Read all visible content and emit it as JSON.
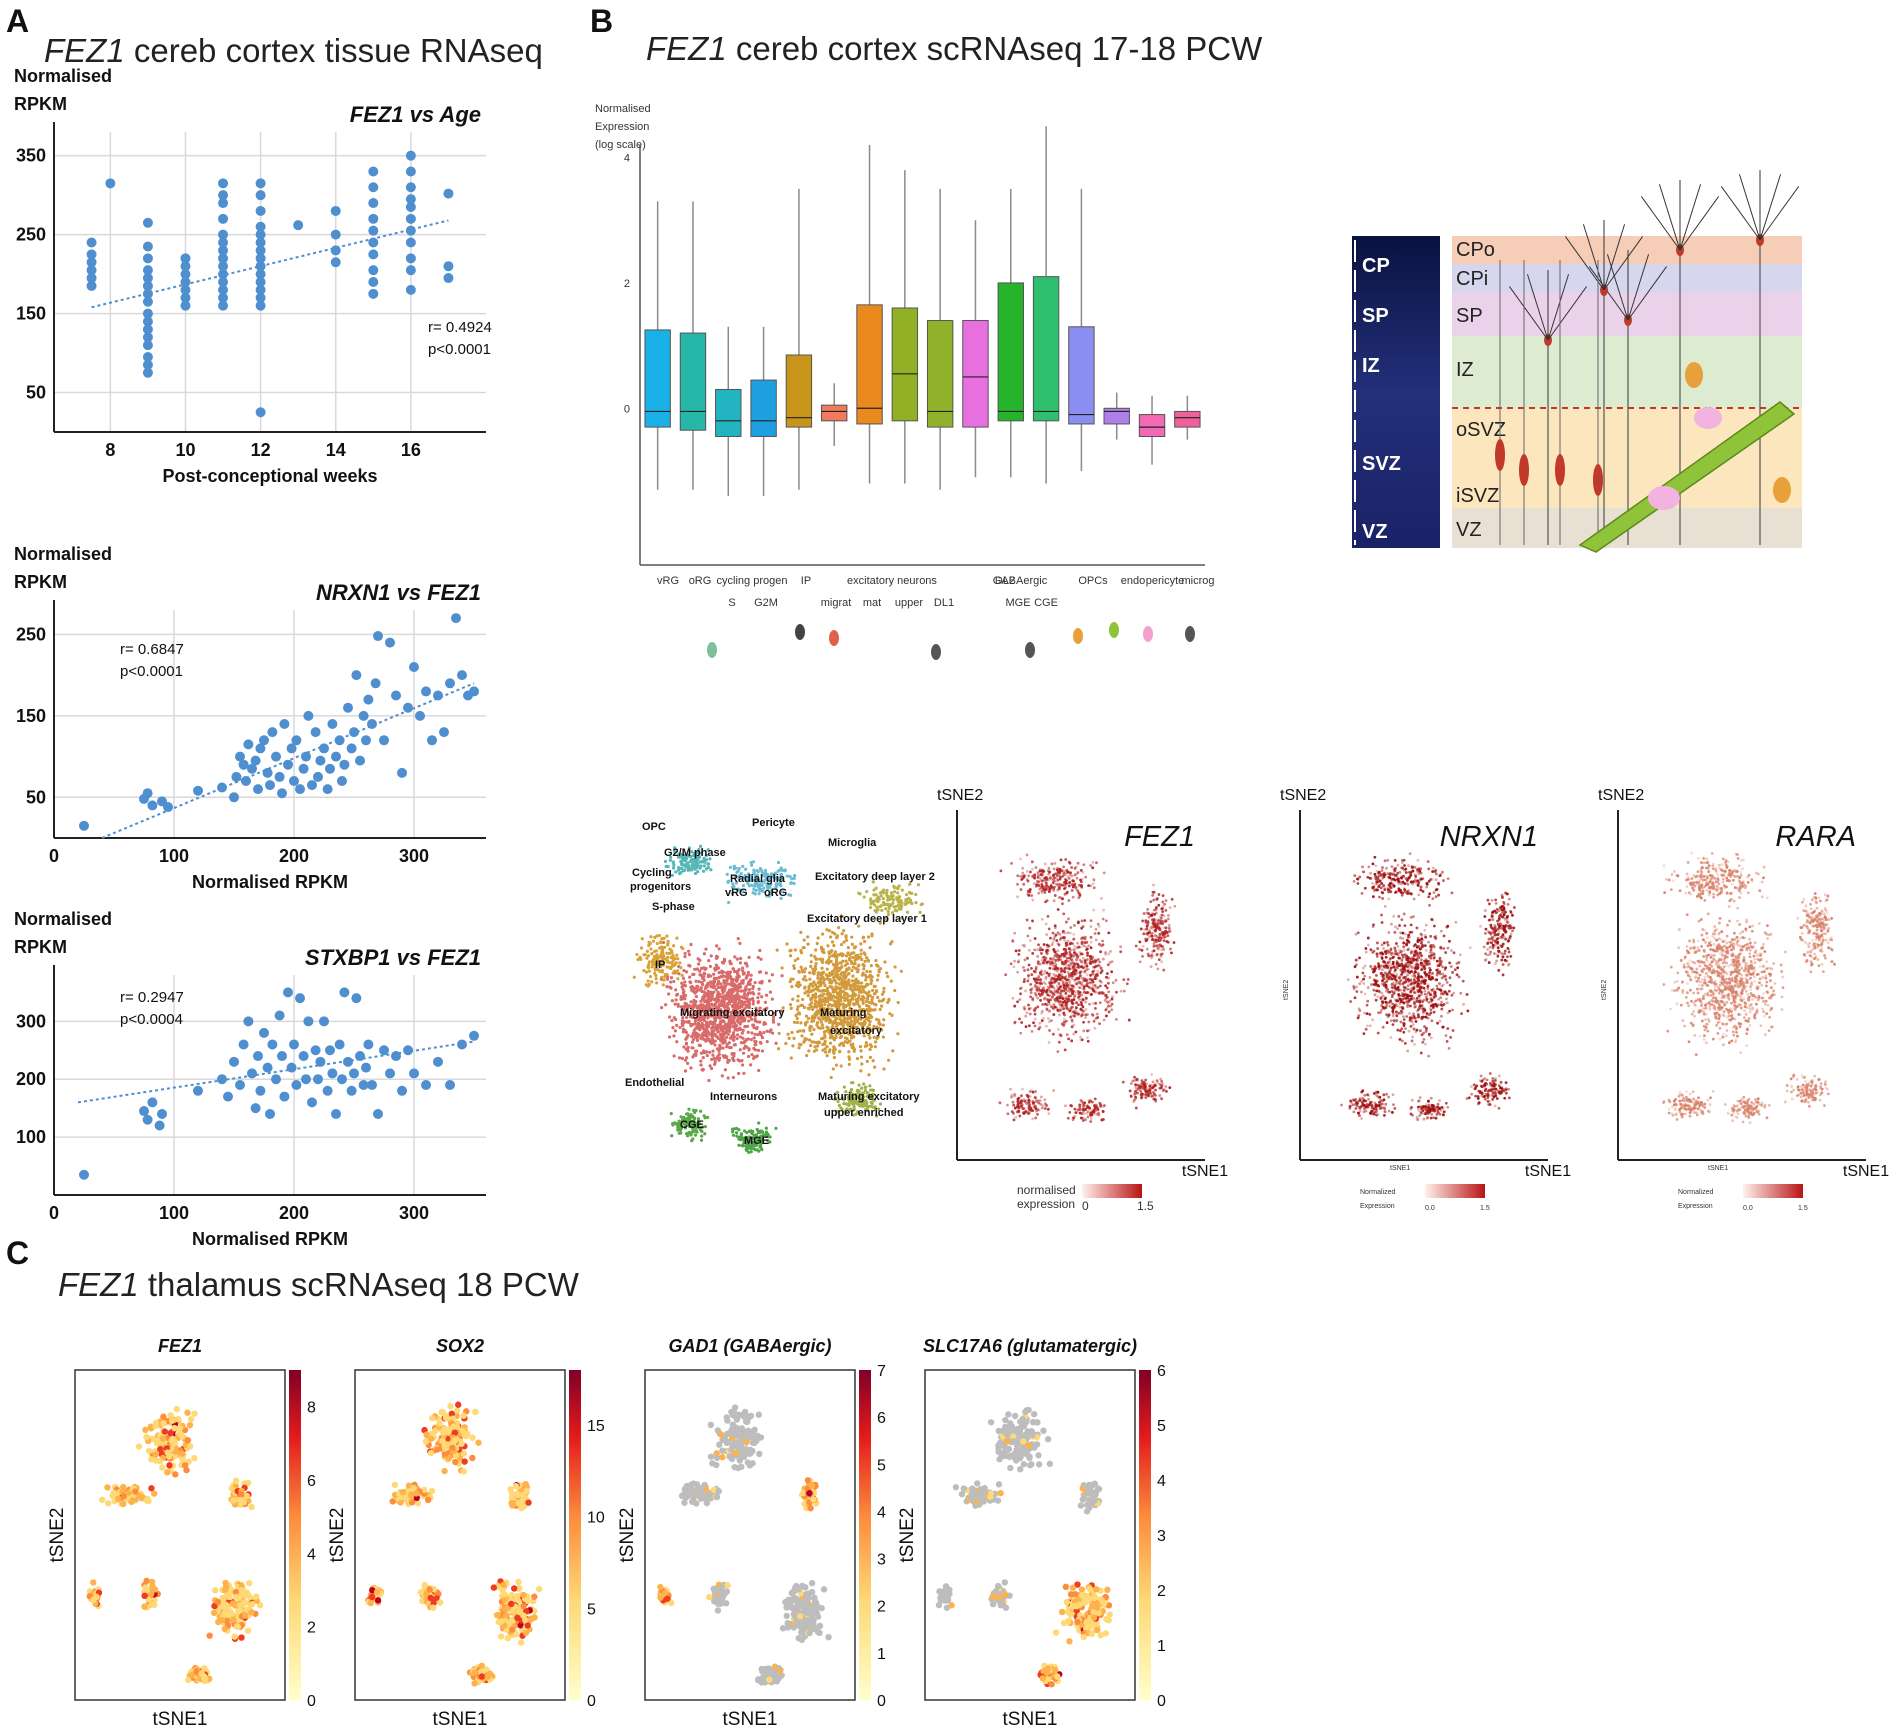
{
  "panels": {
    "a": "A",
    "b": "B",
    "c": "C"
  },
  "section_titles": {
    "a": {
      "gene": "FEZ1",
      "rest": " cereb cortex tissue RNAseq"
    },
    "b": {
      "gene": "FEZ1",
      "rest": " cereb cortex scRNAseq 17-18 PCW"
    },
    "c": {
      "gene": "FEZ1",
      "rest": " thalamus scRNAseq 18 PCW"
    }
  },
  "chart_data": [
    {
      "id": "fez1_vs_age",
      "type": "scatter",
      "title": "FEZ1 vs Age",
      "ylabel_1": "Normalised",
      "ylabel_2": "RPKM",
      "xlabel": "Post-conceptional weeks",
      "xlim": [
        6.5,
        18
      ],
      "ylim": [
        0,
        380
      ],
      "xticks": [
        8,
        10,
        12,
        14,
        16
      ],
      "yticks": [
        50,
        150,
        250,
        350
      ],
      "stats": [
        "r= 0.4924",
        "p<0.0001"
      ],
      "trend": {
        "x": [
          7.5,
          17
        ],
        "y": [
          158,
          268
        ]
      },
      "points": [
        [
          7.5,
          240
        ],
        [
          7.5,
          225
        ],
        [
          7.5,
          215
        ],
        [
          7.5,
          205
        ],
        [
          7.5,
          195
        ],
        [
          7.5,
          185
        ],
        [
          8,
          315
        ],
        [
          9,
          265
        ],
        [
          9,
          235
        ],
        [
          9,
          220
        ],
        [
          9,
          205
        ],
        [
          9,
          195
        ],
        [
          9,
          185
        ],
        [
          9,
          175
        ],
        [
          9,
          165
        ],
        [
          9,
          150
        ],
        [
          9,
          140
        ],
        [
          9,
          130
        ],
        [
          9,
          120
        ],
        [
          9,
          110
        ],
        [
          9,
          95
        ],
        [
          9,
          85
        ],
        [
          9,
          75
        ],
        [
          10,
          220
        ],
        [
          10,
          210
        ],
        [
          10,
          200
        ],
        [
          10,
          190
        ],
        [
          10,
          180
        ],
        [
          10,
          170
        ],
        [
          10,
          160
        ],
        [
          11,
          315
        ],
        [
          11,
          300
        ],
        [
          11,
          290
        ],
        [
          11,
          270
        ],
        [
          11,
          250
        ],
        [
          11,
          240
        ],
        [
          11,
          230
        ],
        [
          11,
          220
        ],
        [
          11,
          210
        ],
        [
          11,
          200
        ],
        [
          11,
          190
        ],
        [
          11,
          180
        ],
        [
          11,
          170
        ],
        [
          11,
          160
        ],
        [
          12,
          315
        ],
        [
          12,
          300
        ],
        [
          12,
          280
        ],
        [
          12,
          260
        ],
        [
          12,
          250
        ],
        [
          12,
          240
        ],
        [
          12,
          230
        ],
        [
          12,
          220
        ],
        [
          12,
          210
        ],
        [
          12,
          200
        ],
        [
          12,
          190
        ],
        [
          12,
          180
        ],
        [
          12,
          170
        ],
        [
          12,
          160
        ],
        [
          12,
          25
        ],
        [
          13,
          262
        ],
        [
          14,
          280
        ],
        [
          14,
          250
        ],
        [
          14,
          230
        ],
        [
          14,
          215
        ],
        [
          15,
          330
        ],
        [
          15,
          310
        ],
        [
          15,
          290
        ],
        [
          15,
          270
        ],
        [
          15,
          255
        ],
        [
          15,
          240
        ],
        [
          15,
          225
        ],
        [
          15,
          205
        ],
        [
          15,
          190
        ],
        [
          15,
          175
        ],
        [
          16,
          350
        ],
        [
          16,
          330
        ],
        [
          16,
          310
        ],
        [
          16,
          295
        ],
        [
          16,
          285
        ],
        [
          16,
          270
        ],
        [
          16,
          255
        ],
        [
          16,
          240
        ],
        [
          16,
          220
        ],
        [
          16,
          205
        ],
        [
          16,
          180
        ],
        [
          17,
          302
        ],
        [
          17,
          210
        ],
        [
          17,
          195
        ]
      ]
    },
    {
      "id": "nrxn1_vs_fez1",
      "type": "scatter",
      "title": "NRXN1 vs FEZ1",
      "ylabel_1": "Normalised",
      "ylabel_2": "RPKM",
      "xlabel": "Normalised  RPKM",
      "xlim": [
        0,
        360
      ],
      "ylim": [
        0,
        280
      ],
      "xticks": [
        0,
        100,
        200,
        300
      ],
      "yticks": [
        50,
        150,
        250
      ],
      "stats": [
        "r= 0.6847",
        "p<0.0001"
      ],
      "trend": {
        "x": [
          40,
          350
        ],
        "y": [
          0,
          190
        ]
      },
      "points": [
        [
          25,
          15
        ],
        [
          75,
          48
        ],
        [
          78,
          55
        ],
        [
          82,
          40
        ],
        [
          90,
          45
        ],
        [
          95,
          38
        ],
        [
          120,
          58
        ],
        [
          140,
          62
        ],
        [
          150,
          50
        ],
        [
          152,
          75
        ],
        [
          155,
          100
        ],
        [
          158,
          90
        ],
        [
          160,
          70
        ],
        [
          162,
          115
        ],
        [
          165,
          85
        ],
        [
          168,
          95
        ],
        [
          170,
          60
        ],
        [
          172,
          110
        ],
        [
          175,
          120
        ],
        [
          178,
          80
        ],
        [
          180,
          65
        ],
        [
          182,
          130
        ],
        [
          185,
          100
        ],
        [
          188,
          75
        ],
        [
          190,
          55
        ],
        [
          192,
          140
        ],
        [
          195,
          90
        ],
        [
          198,
          110
        ],
        [
          200,
          70
        ],
        [
          202,
          120
        ],
        [
          205,
          60
        ],
        [
          208,
          85
        ],
        [
          210,
          100
        ],
        [
          212,
          150
        ],
        [
          215,
          65
        ],
        [
          218,
          130
        ],
        [
          220,
          75
        ],
        [
          222,
          95
        ],
        [
          225,
          110
        ],
        [
          228,
          60
        ],
        [
          230,
          85
        ],
        [
          232,
          140
        ],
        [
          235,
          100
        ],
        [
          238,
          120
        ],
        [
          240,
          70
        ],
        [
          242,
          90
        ],
        [
          245,
          160
        ],
        [
          248,
          110
        ],
        [
          250,
          130
        ],
        [
          252,
          200
        ],
        [
          255,
          95
        ],
        [
          258,
          150
        ],
        [
          260,
          120
        ],
        [
          262,
          170
        ],
        [
          265,
          140
        ],
        [
          268,
          190
        ],
        [
          270,
          248
        ],
        [
          275,
          120
        ],
        [
          280,
          240
        ],
        [
          285,
          175
        ],
        [
          290,
          80
        ],
        [
          295,
          160
        ],
        [
          300,
          210
        ],
        [
          305,
          150
        ],
        [
          310,
          180
        ],
        [
          315,
          120
        ],
        [
          320,
          175
        ],
        [
          325,
          130
        ],
        [
          330,
          190
        ],
        [
          335,
          270
        ],
        [
          340,
          200
        ],
        [
          345,
          175
        ],
        [
          350,
          180
        ]
      ]
    },
    {
      "id": "stxbp1_vs_fez1",
      "type": "scatter",
      "title": "STXBP1 vs FEZ1",
      "ylabel_1": "Normalised",
      "ylabel_2": "RPKM",
      "xlabel": "Normalised  RPKM",
      "xlim": [
        0,
        360
      ],
      "ylim": [
        0,
        380
      ],
      "xticks": [
        0,
        100,
        200,
        300
      ],
      "yticks": [
        100,
        200,
        300
      ],
      "stats": [
        "r= 0.2947",
        "p<0.0004"
      ],
      "trend": {
        "x": [
          20,
          350
        ],
        "y": [
          160,
          265
        ]
      },
      "points": [
        [
          25,
          35
        ],
        [
          75,
          145
        ],
        [
          78,
          130
        ],
        [
          82,
          160
        ],
        [
          88,
          120
        ],
        [
          90,
          140
        ],
        [
          120,
          180
        ],
        [
          140,
          200
        ],
        [
          145,
          170
        ],
        [
          150,
          230
        ],
        [
          155,
          190
        ],
        [
          158,
          260
        ],
        [
          162,
          300
        ],
        [
          165,
          210
        ],
        [
          168,
          150
        ],
        [
          170,
          240
        ],
        [
          172,
          180
        ],
        [
          175,
          280
        ],
        [
          178,
          220
        ],
        [
          180,
          140
        ],
        [
          182,
          260
        ],
        [
          185,
          200
        ],
        [
          188,
          310
        ],
        [
          190,
          240
        ],
        [
          192,
          170
        ],
        [
          195,
          350
        ],
        [
          198,
          220
        ],
        [
          200,
          260
        ],
        [
          202,
          190
        ],
        [
          205,
          340
        ],
        [
          208,
          240
        ],
        [
          210,
          200
        ],
        [
          212,
          300
        ],
        [
          215,
          160
        ],
        [
          218,
          250
        ],
        [
          220,
          200
        ],
        [
          222,
          230
        ],
        [
          225,
          300
        ],
        [
          228,
          180
        ],
        [
          230,
          250
        ],
        [
          232,
          210
        ],
        [
          235,
          140
        ],
        [
          238,
          260
        ],
        [
          240,
          200
        ],
        [
          242,
          350
        ],
        [
          245,
          230
        ],
        [
          248,
          180
        ],
        [
          250,
          210
        ],
        [
          252,
          340
        ],
        [
          255,
          240
        ],
        [
          258,
          190
        ],
        [
          260,
          220
        ],
        [
          262,
          260
        ],
        [
          265,
          190
        ],
        [
          270,
          140
        ],
        [
          275,
          250
        ],
        [
          280,
          210
        ],
        [
          285,
          240
        ],
        [
          290,
          180
        ],
        [
          295,
          250
        ],
        [
          300,
          210
        ],
        [
          310,
          190
        ],
        [
          320,
          230
        ],
        [
          330,
          190
        ],
        [
          340,
          260
        ],
        [
          350,
          275
        ]
      ]
    },
    {
      "id": "celltype_boxplot",
      "type": "box",
      "ylabel": [
        "Normalised",
        "Expression",
        "(log scale)"
      ],
      "ylim": [
        -2.5,
        4.2
      ],
      "yticks": [
        0,
        2,
        4
      ],
      "categories": [
        "vRG",
        "oRG",
        "cycling progen S",
        "cycling progen G2M",
        "IP",
        "migrat",
        "excitatory neurons mat",
        "excitatory neurons upper",
        "excitatory neurons DL1",
        "DL2",
        "GABAergic MGE",
        "GABAergic CGE",
        "OPCs",
        "endo",
        "pericyte",
        "microg"
      ],
      "axis_labels_row1": [
        "vRG",
        "oRG",
        "cycling progen",
        "IP",
        "excitatory neurons",
        "DL2",
        "GABAergic",
        "OPCs",
        "endo",
        "pericyte",
        "microg"
      ],
      "axis_labels_row2": [
        "S",
        "G2M",
        "migrat",
        "mat",
        "upper",
        "DL1",
        "MGE",
        "CGE"
      ],
      "whisker_low": [
        -1.3,
        -1.3,
        -1.4,
        -1.4,
        -1.3,
        -0.6,
        -1.2,
        -1.2,
        -1.3,
        -1.1,
        -1.1,
        -1.2,
        -1.0,
        -0.5,
        -0.9,
        -0.5
      ],
      "q1": [
        -0.3,
        -0.35,
        -0.45,
        -0.45,
        -0.3,
        -0.2,
        -0.25,
        -0.2,
        -0.3,
        -0.3,
        -0.2,
        -0.2,
        -0.25,
        -0.25,
        -0.45,
        -0.3
      ],
      "median": [
        -0.05,
        -0.05,
        -0.2,
        -0.2,
        -0.15,
        -0.05,
        0.0,
        0.55,
        -0.05,
        0.5,
        -0.05,
        -0.05,
        -0.1,
        -0.05,
        -0.3,
        -0.15
      ],
      "q3": [
        1.25,
        1.2,
        0.3,
        0.45,
        0.85,
        0.05,
        1.65,
        1.6,
        1.4,
        1.4,
        2.0,
        2.1,
        1.3,
        0.0,
        -0.1,
        -0.05
      ],
      "whisker_high": [
        3.3,
        3.3,
        1.3,
        1.3,
        3.5,
        0.4,
        4.2,
        3.8,
        3.5,
        3.0,
        3.5,
        4.5,
        3.5,
        0.25,
        0.2,
        0.2
      ],
      "colors": [
        "#1ab0e8",
        "#27b7a8",
        "#22b4c0",
        "#1e9fe0",
        "#c8951a",
        "#f07a5a",
        "#ea8a1e",
        "#92b025",
        "#8fb22a",
        "#e76fe0",
        "#25b42a",
        "#2ebf6f",
        "#8a8ef0",
        "#b07ee8",
        "#f06ab4",
        "#f0609a"
      ]
    },
    {
      "id": "cortex_layers",
      "type": "table",
      "labels": [
        "CP",
        "SP",
        "IZ",
        "SVZ",
        "VZ"
      ],
      "layers": [
        "CPo",
        "CPi",
        "SP",
        "IZ",
        "oSVZ",
        "iSVZ",
        "VZ"
      ]
    },
    {
      "id": "cluster_tsne",
      "type": "scatter",
      "labels": [
        "OPC",
        "Pericyte",
        "Microglia",
        "G2/M phase",
        "Radial glia",
        "Cycling",
        "progenitors",
        "S-phase",
        "vRG",
        "oRG",
        "Excitatory deep layer 2",
        "Excitatory deep layer 1",
        "IP",
        "Migrating excitatory",
        "Maturing",
        "excitatory",
        "Endothelial",
        "Interneurons",
        "Maturing excitatory",
        "upper enriched",
        "CGE",
        "MGE"
      ]
    },
    {
      "id": "tsne_fez1",
      "type": "scatter",
      "gene": "FEZ1",
      "xlabel": "tSNE1",
      "ylabel": "tSNE2",
      "legend_title_1": "normalised",
      "legend_title_2": "expression",
      "range": [
        "0",
        "1.5"
      ]
    },
    {
      "id": "tsne_nrxn1",
      "type": "scatter",
      "gene": "NRXN1",
      "xlabel": "tSNE1",
      "ylabel": "tSNE2",
      "legend_title_1": "Normalized",
      "legend_title_2": "Expression",
      "range": [
        "0.0",
        "1.5"
      ],
      "small_x": "tSNE1",
      "small_y": "tSNE2"
    },
    {
      "id": "tsne_rara",
      "type": "scatter",
      "gene": "RARA",
      "xlabel": "tSNE1",
      "ylabel": "tSNE2",
      "legend_title_1": "Normalized",
      "legend_title_2": "Expression",
      "range": [
        "0.0",
        "1.5"
      ],
      "small_x": "tSNE1",
      "small_y": "tSNE2"
    },
    {
      "id": "thal_fez1",
      "type": "scatter",
      "title": "FEZ1",
      "xlabel": "tSNE1",
      "ylabel": "tSNE2",
      "colorbar_ticks": [
        "0",
        "2",
        "4",
        "6",
        "8"
      ],
      "cmax": 9
    },
    {
      "id": "thal_sox2",
      "type": "scatter",
      "title": "SOX2",
      "xlabel": "tSNE1",
      "ylabel": "tSNE2",
      "colorbar_ticks": [
        "0",
        "5",
        "10",
        "15"
      ],
      "cmax": 18
    },
    {
      "id": "thal_gad1",
      "type": "scatter",
      "title": "GAD1 (GABAergic)",
      "xlabel": "tSNE1",
      "ylabel": "tSNE2",
      "colorbar_ticks": [
        "0",
        "1",
        "2",
        "3",
        "4",
        "5",
        "6",
        "7"
      ],
      "cmax": 7
    },
    {
      "id": "thal_slc17a6",
      "type": "scatter",
      "title": "SLC17A6  (glutamatergic)",
      "xlabel": "tSNE1",
      "ylabel": "tSNE2",
      "colorbar_ticks": [
        "0",
        "1",
        "2",
        "3",
        "4",
        "5",
        "6"
      ],
      "cmax": 6
    }
  ],
  "colors": {
    "scatter": "#4f8fd0",
    "trend": "#4f8fd0",
    "grid": "#d9d9d9"
  }
}
